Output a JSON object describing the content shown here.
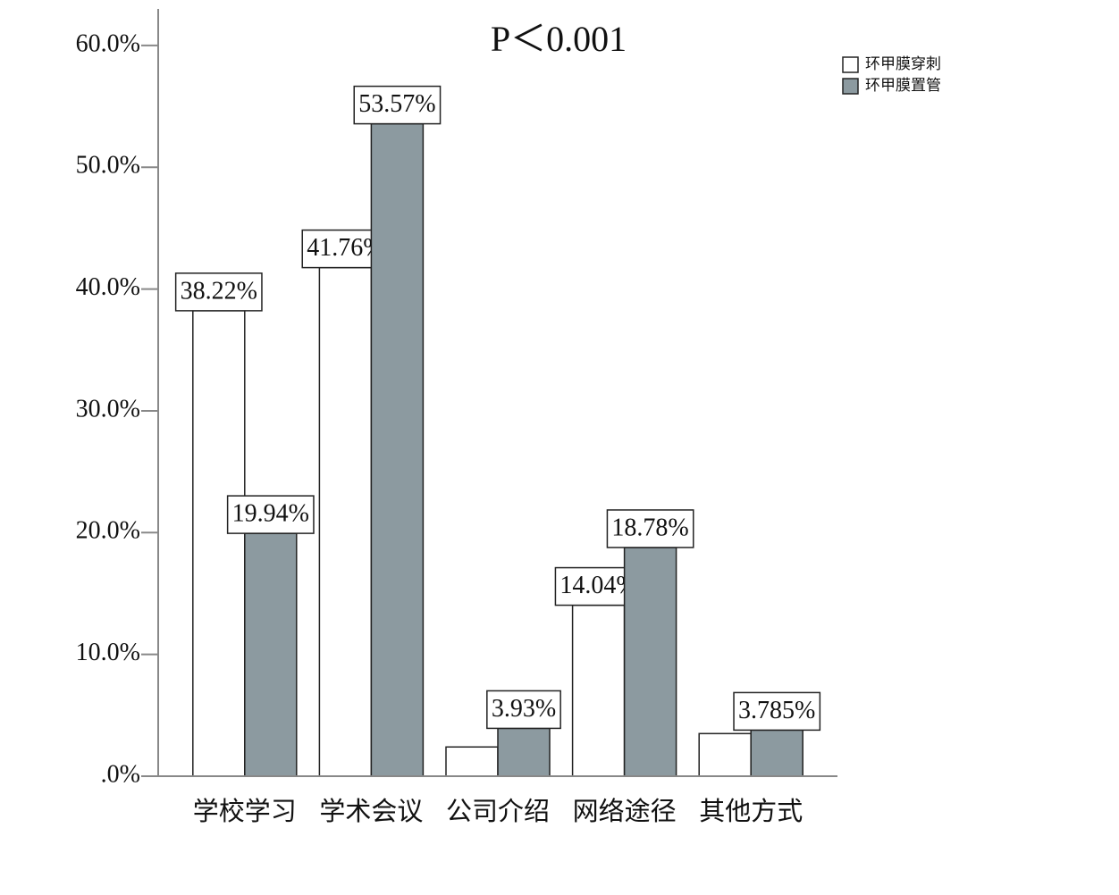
{
  "chart_data": {
    "type": "bar",
    "title": "P＜0.001",
    "categories": [
      "学校学习",
      "学术会议",
      "公司介绍",
      "网络途径",
      "其他方式"
    ],
    "series": [
      {
        "name": "环甲膜穿刺",
        "color": "#ffffff",
        "values": [
          38.22,
          41.76,
          2.4,
          14.04,
          3.5
        ],
        "value_labels": [
          "38.22%",
          "41.76%",
          null,
          "14.04%",
          null
        ]
      },
      {
        "name": "环甲膜置管",
        "color": "#8c9aa0",
        "values": [
          19.94,
          53.57,
          3.93,
          18.78,
          3.785
        ],
        "value_labels": [
          "19.94%",
          "53.57%",
          "3.93%",
          "18.78%",
          "3.785%"
        ]
      }
    ],
    "ylim": [
      0,
      63
    ],
    "yticks": [
      {
        "value": 0,
        "label": ".0%"
      },
      {
        "value": 10,
        "label": "10.0%"
      },
      {
        "value": 20,
        "label": "20.0%"
      },
      {
        "value": 30,
        "label": "30.0%"
      },
      {
        "value": 40,
        "label": "40.0%"
      },
      {
        "value": 50,
        "label": "50.0%"
      },
      {
        "value": 60,
        "label": "60.0%"
      }
    ],
    "legend": "top-right"
  }
}
